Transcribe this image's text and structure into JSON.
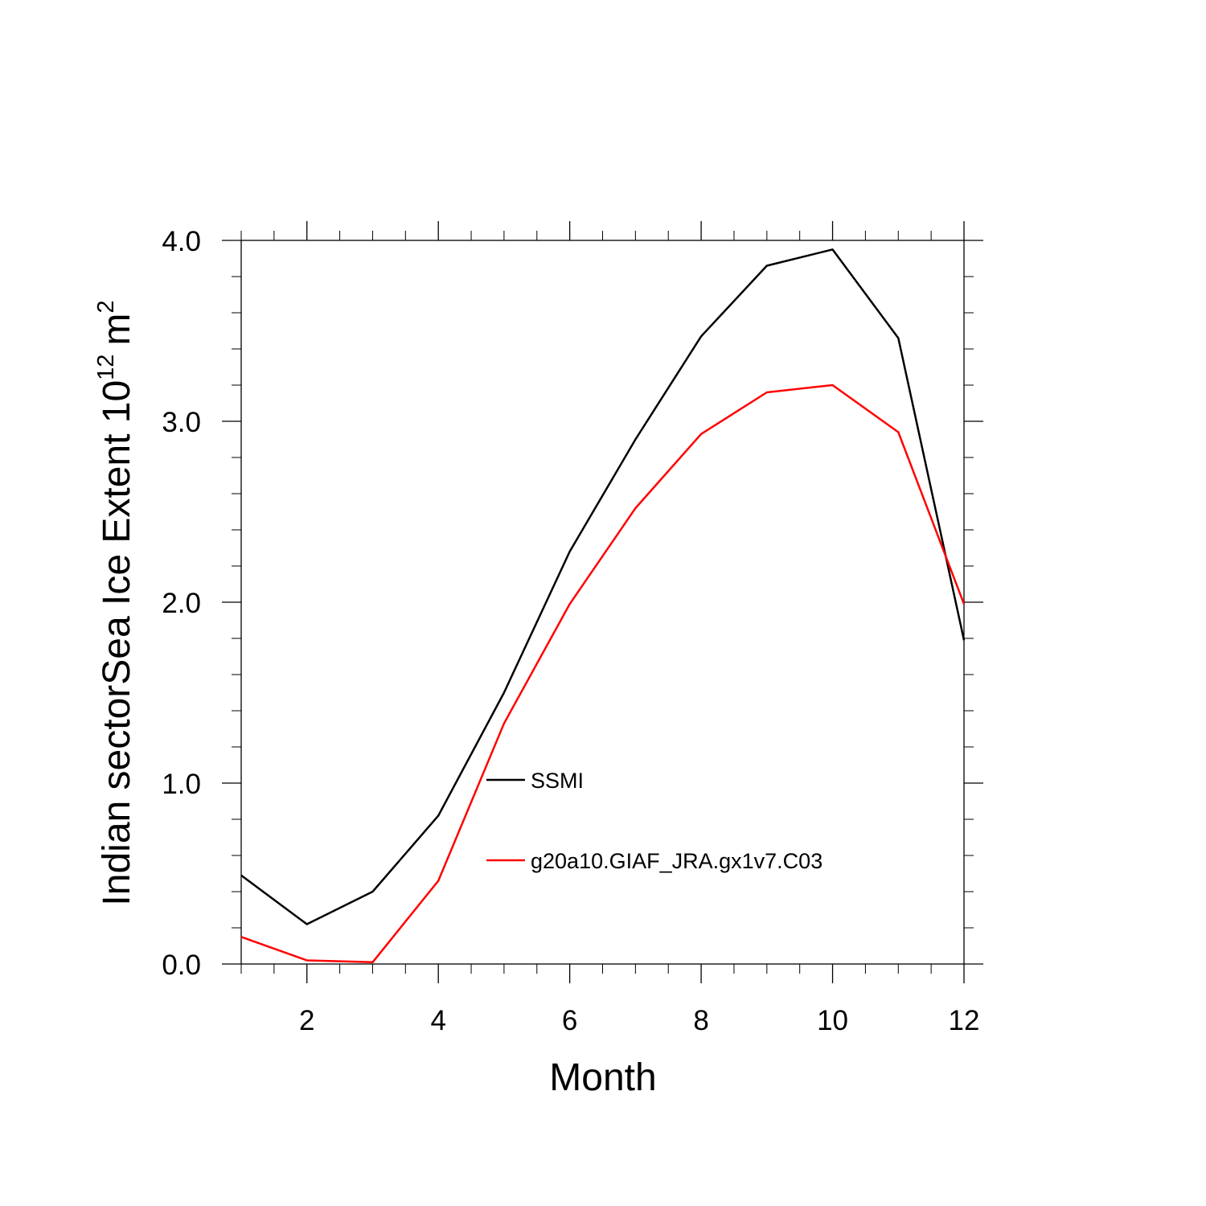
{
  "chart_data": {
    "type": "line",
    "title": "",
    "xlabel": "Month",
    "ylabel": {
      "main": "Indian sectorSea Ice Extent 10",
      "exponent": "12",
      "unit": "m",
      "unit_exponent": "2"
    },
    "x": [
      1,
      2,
      3,
      4,
      5,
      6,
      7,
      8,
      9,
      10,
      11,
      12
    ],
    "xlim": [
      1,
      12
    ],
    "ylim": [
      0,
      4
    ],
    "xticks": [
      2,
      4,
      6,
      8,
      10,
      12
    ],
    "yticks": [
      "0.0",
      "1.0",
      "2.0",
      "3.0",
      "4.0"
    ],
    "grid": false,
    "legend_position": "center",
    "series": [
      {
        "name": "SSMI",
        "color": "#000000",
        "values": [
          0.49,
          0.22,
          0.4,
          0.82,
          1.5,
          2.28,
          2.9,
          3.47,
          3.86,
          3.95,
          3.46,
          1.79
        ]
      },
      {
        "name": "g20a10.GIAF_JRA.gx1v7.C03",
        "color": "#ff0000",
        "values": [
          0.15,
          0.02,
          0.01,
          0.46,
          1.33,
          1.99,
          2.52,
          2.93,
          3.16,
          3.2,
          2.94,
          1.99
        ]
      }
    ]
  }
}
